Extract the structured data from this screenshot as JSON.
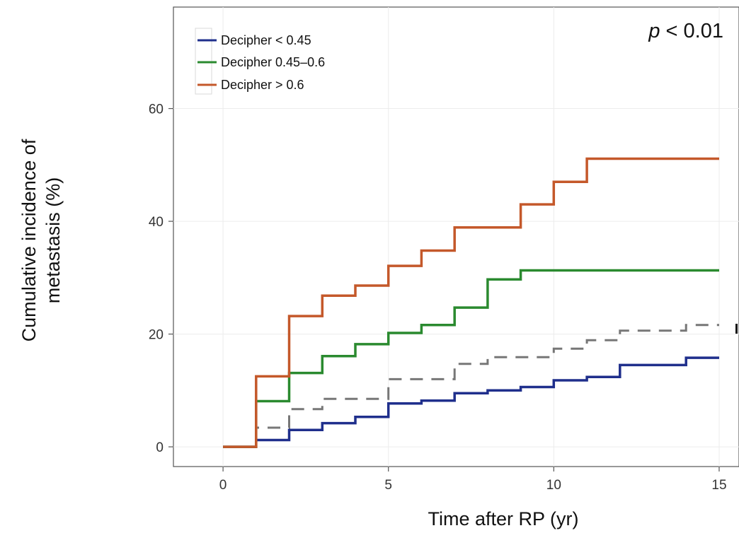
{
  "chart_data": {
    "type": "line",
    "step": true,
    "xlabel": "Time after RP (yr)",
    "ylabel_lines": [
      "Cumulative incidence of",
      "metastasis (%)"
    ],
    "xlim": [
      -1.5,
      15.6
    ],
    "ylim": [
      -3.5,
      78
    ],
    "xticks": [
      0,
      5,
      10,
      15
    ],
    "yticks": [
      0,
      20,
      40,
      60
    ],
    "grid": true,
    "legend_position": "top-left",
    "annotation": {
      "italic_part": "p",
      "rest": " < 0.01",
      "position": "top-right"
    },
    "series": [
      {
        "name": "Decipher < 0.45",
        "color": "#1f2f8c",
        "points": [
          [
            0,
            0
          ],
          [
            1,
            0
          ],
          [
            1,
            1.2
          ],
          [
            2,
            1.2
          ],
          [
            2,
            3.0
          ],
          [
            3,
            3.0
          ],
          [
            3,
            4.2
          ],
          [
            4,
            4.2
          ],
          [
            4,
            5.3
          ],
          [
            5,
            5.3
          ],
          [
            5,
            7.7
          ],
          [
            6,
            7.7
          ],
          [
            6,
            8.2
          ],
          [
            7,
            8.2
          ],
          [
            7,
            9.5
          ],
          [
            8,
            9.5
          ],
          [
            8,
            10.0
          ],
          [
            9,
            10.0
          ],
          [
            9,
            10.6
          ],
          [
            10,
            10.6
          ],
          [
            10,
            11.8
          ],
          [
            11,
            11.8
          ],
          [
            11,
            12.4
          ],
          [
            12,
            12.4
          ],
          [
            12,
            14.5
          ],
          [
            14,
            14.5
          ],
          [
            14,
            15.8
          ],
          [
            15,
            15.8
          ]
        ]
      },
      {
        "name": "Decipher 0.45–0.6",
        "color": "#2a8a2f",
        "points": [
          [
            0,
            0
          ],
          [
            1,
            0
          ],
          [
            1,
            8.1
          ],
          [
            2,
            8.1
          ],
          [
            2,
            13.1
          ],
          [
            3,
            13.1
          ],
          [
            3,
            16.1
          ],
          [
            4,
            16.1
          ],
          [
            4,
            18.2
          ],
          [
            5,
            18.2
          ],
          [
            5,
            20.2
          ],
          [
            6,
            20.2
          ],
          [
            6,
            21.6
          ],
          [
            7,
            21.6
          ],
          [
            7,
            24.7
          ],
          [
            8,
            24.7
          ],
          [
            8,
            29.7
          ],
          [
            9,
            29.7
          ],
          [
            9,
            31.3
          ],
          [
            15,
            31.3
          ]
        ]
      },
      {
        "name": "Decipher > 0.6",
        "color": "#c4582a",
        "points": [
          [
            0,
            0
          ],
          [
            1,
            0
          ],
          [
            1,
            12.5
          ],
          [
            2,
            12.5
          ],
          [
            2,
            23.2
          ],
          [
            3,
            23.2
          ],
          [
            3,
            26.8
          ],
          [
            4,
            26.8
          ],
          [
            4,
            28.6
          ],
          [
            5,
            28.6
          ],
          [
            5,
            32.1
          ],
          [
            6,
            32.1
          ],
          [
            6,
            34.8
          ],
          [
            7,
            34.8
          ],
          [
            7,
            38.9
          ],
          [
            9,
            38.9
          ],
          [
            9,
            43.0
          ],
          [
            10,
            43.0
          ],
          [
            10,
            47.0
          ],
          [
            11,
            47.0
          ],
          [
            11,
            51.1
          ],
          [
            15,
            51.1
          ]
        ]
      },
      {
        "name": "",
        "color": "#777777",
        "dashed": true,
        "points": [
          [
            0,
            0
          ],
          [
            1,
            0
          ],
          [
            1,
            3.4
          ],
          [
            2,
            3.4
          ],
          [
            2,
            6.7
          ],
          [
            3,
            6.7
          ],
          [
            3,
            8.5
          ],
          [
            5,
            8.5
          ],
          [
            5,
            12.0
          ],
          [
            7,
            12.0
          ],
          [
            7,
            14.7
          ],
          [
            8,
            14.7
          ],
          [
            8,
            15.9
          ],
          [
            10,
            15.9
          ],
          [
            10,
            17.4
          ],
          [
            11,
            17.4
          ],
          [
            11,
            18.9
          ],
          [
            12,
            18.9
          ],
          [
            12,
            20.6
          ],
          [
            14,
            20.6
          ],
          [
            14,
            21.6
          ],
          [
            15,
            21.6
          ]
        ]
      }
    ]
  }
}
